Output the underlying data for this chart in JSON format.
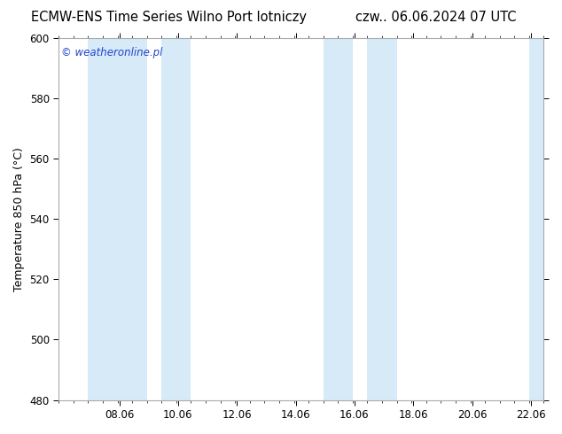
{
  "title_left": "ECMW-ENS Time Series Wilno Port lotniczy",
  "title_right": "czw.. 06.06.2024 07 UTC",
  "ylabel": "Temperature 850 hPa (°C)",
  "watermark": "© weatheronline.pl",
  "xlim": [
    6.0,
    22.5
  ],
  "ylim": [
    480,
    600
  ],
  "yticks": [
    480,
    500,
    520,
    540,
    560,
    580,
    600
  ],
  "xticks": [
    8.06,
    10.06,
    12.06,
    14.06,
    16.06,
    18.06,
    20.06,
    22.06
  ],
  "xtick_labels": [
    "08.06",
    "10.06",
    "12.06",
    "14.06",
    "16.06",
    "18.06",
    "20.06",
    "22.06"
  ],
  "shaded_bands": [
    {
      "xmin": 7.0,
      "xmax": 9.0
    },
    {
      "xmin": 9.5,
      "xmax": 10.5
    },
    {
      "xmin": 15.0,
      "xmax": 16.0
    },
    {
      "xmin": 16.5,
      "xmax": 17.5
    },
    {
      "xmin": 22.0,
      "xmax": 22.5
    }
  ],
  "band_color": "#d6eaf8",
  "background_color": "#ffffff",
  "plot_bg_color": "#ffffff",
  "title_fontsize": 10.5,
  "watermark_color": "#2244cc",
  "watermark_fontsize": 8.5,
  "tick_fontsize": 8.5,
  "ylabel_fontsize": 9,
  "minor_xtick_interval": 0.5,
  "grid_color": "#dddddd"
}
